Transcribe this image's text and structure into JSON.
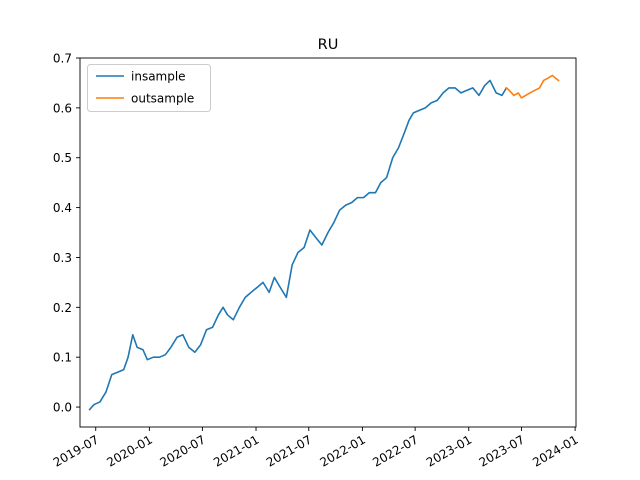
{
  "chart_data": {
    "type": "line",
    "title": "RU",
    "xlabel": "",
    "ylabel": "",
    "xlim": [
      "2019-05-08",
      "2024-01-04"
    ],
    "ylim": [
      -0.04,
      0.7
    ],
    "x_ticks": [
      "2019-07",
      "2020-01",
      "2020-07",
      "2021-01",
      "2021-07",
      "2022-01",
      "2022-07",
      "2023-01",
      "2023-07",
      "2024-01"
    ],
    "y_ticks": [
      0.0,
      0.1,
      0.2,
      0.3,
      0.4,
      0.5,
      0.6,
      0.7
    ],
    "grid": false,
    "legend": {
      "position": "upper-left"
    },
    "series": [
      {
        "name": "insample",
        "color": "#1f77b4",
        "x": [
          "2019-06-10",
          "2019-06-25",
          "2019-07-15",
          "2019-08-05",
          "2019-08-25",
          "2019-09-15",
          "2019-10-05",
          "2019-10-20",
          "2019-11-05",
          "2019-11-20",
          "2019-12-10",
          "2019-12-25",
          "2020-01-15",
          "2020-02-05",
          "2020-02-25",
          "2020-03-15",
          "2020-04-05",
          "2020-04-25",
          "2020-05-15",
          "2020-06-05",
          "2020-06-25",
          "2020-07-15",
          "2020-08-05",
          "2020-08-25",
          "2020-09-10",
          "2020-09-25",
          "2020-10-15",
          "2020-11-05",
          "2020-11-25",
          "2020-12-15",
          "2021-01-05",
          "2021-01-25",
          "2021-02-15",
          "2021-03-05",
          "2021-03-25",
          "2021-04-15",
          "2021-05-05",
          "2021-05-25",
          "2021-06-15",
          "2021-07-05",
          "2021-07-25",
          "2021-08-15",
          "2021-09-05",
          "2021-09-25",
          "2021-10-15",
          "2021-11-05",
          "2021-11-25",
          "2021-12-15",
          "2022-01-05",
          "2022-01-25",
          "2022-02-15",
          "2022-03-05",
          "2022-03-25",
          "2022-04-15",
          "2022-05-05",
          "2022-05-25",
          "2022-06-10",
          "2022-06-25",
          "2022-07-15",
          "2022-08-05",
          "2022-08-25",
          "2022-09-15",
          "2022-10-05",
          "2022-10-25",
          "2022-11-15",
          "2022-12-05",
          "2022-12-25",
          "2023-01-15",
          "2023-02-05",
          "2023-02-25",
          "2023-03-15",
          "2023-04-05",
          "2023-04-25",
          "2023-05-10"
        ],
        "y": [
          -0.005,
          0.005,
          0.01,
          0.03,
          0.065,
          0.07,
          0.075,
          0.1,
          0.145,
          0.12,
          0.115,
          0.095,
          0.1,
          0.1,
          0.105,
          0.12,
          0.14,
          0.145,
          0.12,
          0.11,
          0.125,
          0.155,
          0.16,
          0.185,
          0.2,
          0.185,
          0.175,
          0.2,
          0.22,
          0.23,
          0.24,
          0.25,
          0.23,
          0.26,
          0.24,
          0.22,
          0.285,
          0.31,
          0.32,
          0.355,
          0.34,
          0.325,
          0.35,
          0.37,
          0.395,
          0.405,
          0.41,
          0.42,
          0.42,
          0.43,
          0.43,
          0.45,
          0.46,
          0.5,
          0.52,
          0.55,
          0.575,
          0.59,
          0.595,
          0.6,
          0.61,
          0.615,
          0.63,
          0.64,
          0.64,
          0.63,
          0.635,
          0.64,
          0.625,
          0.645,
          0.655,
          0.63,
          0.625,
          0.64
        ]
      },
      {
        "name": "outsample",
        "color": "#ff7f0e",
        "x": [
          "2023-05-10",
          "2023-05-20",
          "2023-06-05",
          "2023-06-20",
          "2023-07-01",
          "2023-07-15",
          "2023-07-30",
          "2023-08-15",
          "2023-09-01",
          "2023-09-15",
          "2023-10-01",
          "2023-10-15",
          "2023-10-25",
          "2023-11-05"
        ],
        "y": [
          0.64,
          0.635,
          0.625,
          0.63,
          0.62,
          0.625,
          0.63,
          0.635,
          0.64,
          0.655,
          0.66,
          0.665,
          0.66,
          0.655
        ]
      }
    ]
  }
}
